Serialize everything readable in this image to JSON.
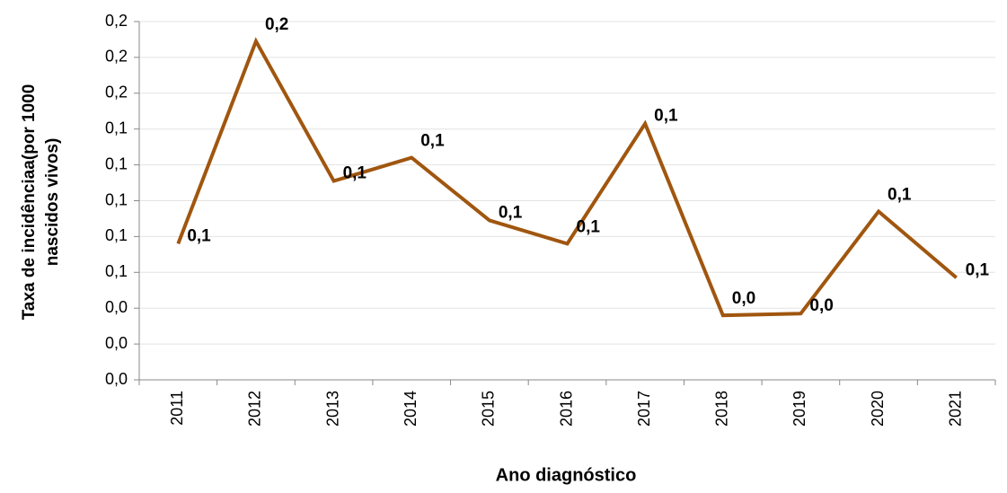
{
  "chart_data": {
    "type": "line",
    "x_label": "Ano diagnóstico",
    "y_label": "Taxa de incidênciaa(por 1000 nascidos vivos)",
    "categories": [
      "2011",
      "2012",
      "2013",
      "2014",
      "2015",
      "2016",
      "2017",
      "2018",
      "2019",
      "2020",
      "2021"
    ],
    "series": [
      {
        "name": "Taxa de incidência",
        "color": "#a0560f",
        "values": [
          0.076,
          0.189,
          0.111,
          0.124,
          0.089,
          0.076,
          0.143,
          0.036,
          0.037,
          0.094,
          0.057
        ],
        "value_labels": [
          "0,1",
          "0,2",
          "0,1",
          "0,1",
          "0,1",
          "0,1",
          "0,1",
          "0,0",
          "0,0",
          "0,1",
          "0,1"
        ]
      }
    ],
    "ylim": [
      0,
      0.2
    ],
    "yticks": [
      {
        "value": 0,
        "label": "0,0"
      },
      {
        "value": 0.02,
        "label": "0,0"
      },
      {
        "value": 0.04,
        "label": "0,0"
      },
      {
        "value": 0.06,
        "label": "0,1"
      },
      {
        "value": 0.08,
        "label": "0,1"
      },
      {
        "value": 0.1,
        "label": "0,1"
      },
      {
        "value": 0.12,
        "label": "0,1"
      },
      {
        "value": 0.14,
        "label": "0,1"
      },
      {
        "value": 0.16,
        "label": "0,2"
      },
      {
        "value": 0.18,
        "label": "0,2"
      },
      {
        "value": 0.2,
        "label": "0,2"
      }
    ],
    "grid": true
  }
}
